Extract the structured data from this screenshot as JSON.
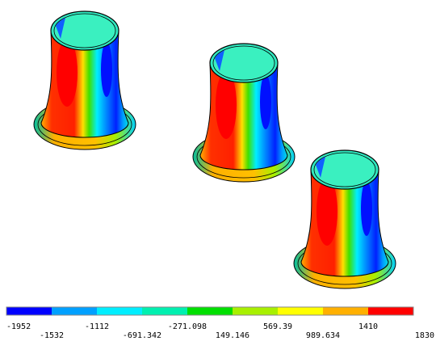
{
  "legend": {
    "levels": [
      "-1952",
      "-1532",
      "-1112",
      "-691.342",
      "-271.098",
      "149.146",
      "569.39",
      "989.634",
      "1410",
      "1830"
    ],
    "colors": [
      "#0000ff",
      "#00a0ff",
      "#00eeff",
      "#00f0b0",
      "#00e000",
      "#a8f000",
      "#ffff00",
      "#ffb000",
      "#ff0000"
    ]
  }
}
